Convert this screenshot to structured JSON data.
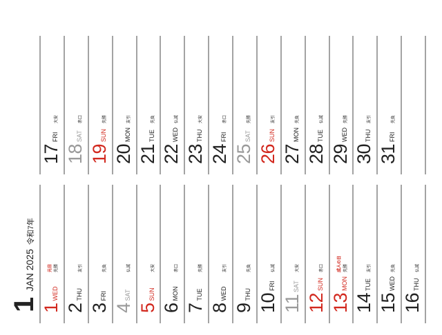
{
  "header": {
    "month_number": "1",
    "month_year": "JAN 2025",
    "era_year": "令和7年"
  },
  "colors": {
    "sunday_holiday": "#d2281e",
    "saturday": "#9a9a9a",
    "weekday": "#222222",
    "divider": "#a3a3a3"
  },
  "days": [
    {
      "num": "1",
      "dow": "WED",
      "rokuyo": "先勝",
      "holiday": "元日",
      "type": "sun"
    },
    {
      "num": "2",
      "dow": "THU",
      "rokuyo": "友引",
      "type": "wk"
    },
    {
      "num": "3",
      "dow": "FRI",
      "rokuyo": "先負",
      "type": "wk"
    },
    {
      "num": "4",
      "dow": "SAT",
      "rokuyo": "仏滅",
      "type": "sat"
    },
    {
      "num": "5",
      "dow": "SUN",
      "rokuyo": "大安",
      "type": "sun"
    },
    {
      "num": "6",
      "dow": "MON",
      "rokuyo": "赤口",
      "type": "wk"
    },
    {
      "num": "7",
      "dow": "TUE",
      "rokuyo": "先勝",
      "type": "wk"
    },
    {
      "num": "8",
      "dow": "WED",
      "rokuyo": "友引",
      "type": "wk"
    },
    {
      "num": "9",
      "dow": "THU",
      "rokuyo": "先負",
      "type": "wk"
    },
    {
      "num": "10",
      "dow": "FRI",
      "rokuyo": "仏滅",
      "type": "wk"
    },
    {
      "num": "11",
      "dow": "SAT",
      "rokuyo": "大安",
      "type": "sat"
    },
    {
      "num": "12",
      "dow": "SUN",
      "rokuyo": "赤口",
      "type": "sun"
    },
    {
      "num": "13",
      "dow": "MON",
      "rokuyo": "先勝",
      "holiday": "成人の日",
      "type": "sun"
    },
    {
      "num": "14",
      "dow": "TUE",
      "rokuyo": "友引",
      "type": "wk"
    },
    {
      "num": "15",
      "dow": "WED",
      "rokuyo": "先負",
      "type": "wk"
    },
    {
      "num": "16",
      "dow": "THU",
      "rokuyo": "仏滅",
      "type": "wk"
    },
    {
      "num": "17",
      "dow": "FRI",
      "rokuyo": "大安",
      "type": "wk"
    },
    {
      "num": "18",
      "dow": "SAT",
      "rokuyo": "赤口",
      "type": "sat"
    },
    {
      "num": "19",
      "dow": "SUN",
      "rokuyo": "先勝",
      "type": "sun"
    },
    {
      "num": "20",
      "dow": "MON",
      "rokuyo": "友引",
      "type": "wk"
    },
    {
      "num": "21",
      "dow": "TUE",
      "rokuyo": "先負",
      "type": "wk"
    },
    {
      "num": "22",
      "dow": "WED",
      "rokuyo": "仏滅",
      "type": "wk"
    },
    {
      "num": "23",
      "dow": "THU",
      "rokuyo": "大安",
      "type": "wk"
    },
    {
      "num": "24",
      "dow": "FRI",
      "rokuyo": "赤口",
      "type": "wk"
    },
    {
      "num": "25",
      "dow": "SAT",
      "rokuyo": "先勝",
      "type": "sat"
    },
    {
      "num": "26",
      "dow": "SUN",
      "rokuyo": "友引",
      "type": "sun"
    },
    {
      "num": "27",
      "dow": "MON",
      "rokuyo": "先負",
      "type": "wk"
    },
    {
      "num": "28",
      "dow": "TUE",
      "rokuyo": "仏滅",
      "type": "wk"
    },
    {
      "num": "29",
      "dow": "WED",
      "rokuyo": "先勝",
      "type": "wk"
    },
    {
      "num": "30",
      "dow": "THU",
      "rokuyo": "友引",
      "type": "wk"
    },
    {
      "num": "31",
      "dow": "FRI",
      "rokuyo": "先負",
      "type": "wk"
    }
  ]
}
